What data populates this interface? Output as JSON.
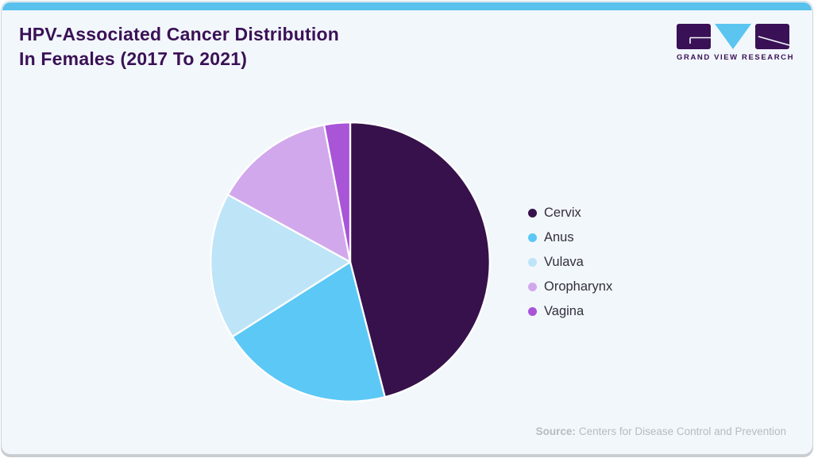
{
  "header": {
    "title_line1": "HPV-Associated Cancer Distribution",
    "title_line2": "In Females (2017 To 2021)"
  },
  "logo": {
    "wordmark": "GRAND VIEW RESEARCH"
  },
  "chart_data": {
    "type": "pie",
    "title": "HPV-Associated Cancer Distribution In Females (2017 To 2021)",
    "categories": [
      "Cervix",
      "Anus",
      "Vulava",
      "Oropharynx",
      "Vagina"
    ],
    "values": [
      46,
      20,
      17,
      14,
      3
    ],
    "colors": [
      "#36114B",
      "#5CC8F5",
      "#BEE4F8",
      "#D2A8ED",
      "#A855D8"
    ],
    "start_angle_deg": 0,
    "direction": "clockwise",
    "legend_position": "right",
    "slice_separator_color": "#FFFFFF"
  },
  "source": {
    "label": "Source:",
    "text": "Centers for Disease Control and Prevention"
  },
  "theme": {
    "card_background": "#F2F7FB",
    "card_border": "#CBD4DC",
    "top_bar": "#58C1EC",
    "title_color": "#3A1156",
    "legend_text_color": "#322F3C",
    "source_text_color": "#B7BBC2",
    "logo_purple": "#3A1156",
    "logo_blue": "#5BC5F0"
  }
}
